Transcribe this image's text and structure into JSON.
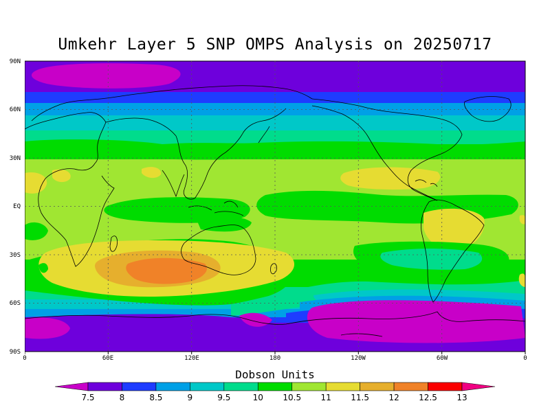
{
  "title": "Umkehr Layer 5 SNP OMPS Analysis on 20250717",
  "lat_labels": [
    "90N",
    "60N",
    "30N",
    "EQ",
    "30S",
    "60S",
    "90S"
  ],
  "lon_labels": [
    "0",
    "60E",
    "120E",
    "180",
    "120W",
    "60W",
    "0"
  ],
  "colorbar": {
    "title": "Dobson Units",
    "ticks": [
      "7.5",
      "8",
      "8.5",
      "9",
      "9.5",
      "10",
      "10.5",
      "11",
      "11.5",
      "12",
      "12.5",
      "13"
    ],
    "colors": [
      "#c800c8",
      "#6e00dc",
      "#1e3cff",
      "#00a0e6",
      "#00c8c8",
      "#00dc8c",
      "#00dc00",
      "#a0e632",
      "#e6dc32",
      "#e6af2d",
      "#f08228",
      "#fa0000",
      "#f00082"
    ]
  },
  "chart_data": {
    "type": "heatmap",
    "title": "Umkehr Layer 5 SNP OMPS Analysis on 20250717",
    "xlabel": "",
    "ylabel": "",
    "units": "Dobson Units",
    "x_range": [
      0,
      360
    ],
    "y_range": [
      -90,
      90
    ],
    "grid": true,
    "levels": [
      7.5,
      8,
      8.5,
      9,
      9.5,
      10,
      10.5,
      11,
      11.5,
      12,
      12.5,
      13
    ]
  }
}
